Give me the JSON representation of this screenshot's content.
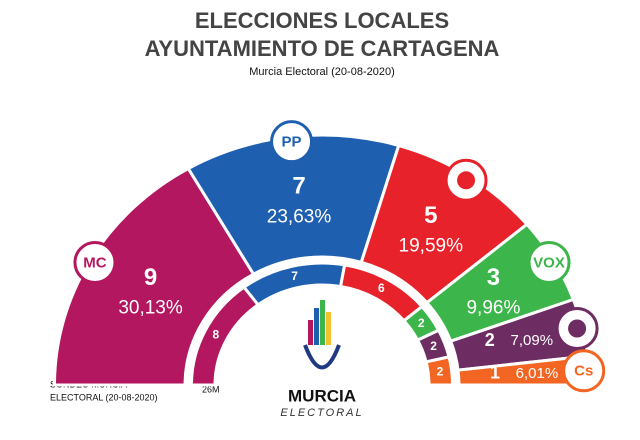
{
  "chart_data": {
    "type": "semicircle",
    "title": [
      "ELECCIONES LOCALES",
      "AYUNTAMIENTO DE CARTAGENA"
    ],
    "subtitle": "Murcia Electoral (20-08-2020)",
    "note": [
      "SONDEO MURCIA",
      "ELECTORAL (20-08-2020)"
    ],
    "inner_label": "26M",
    "brand": [
      "MURCIA",
      "ELECTORAL"
    ],
    "categories": [
      "MC",
      "PP",
      null,
      "VOX",
      null,
      "Cs"
    ],
    "colors": [
      "#b3175f",
      "#1f5fb0",
      "#e8222b",
      "#3cb64a",
      "#6e2d62",
      "#f26522"
    ],
    "seats": [
      9,
      7,
      5,
      3,
      2,
      1
    ],
    "percent": [
      30.13,
      23.63,
      19.59,
      9.96,
      7.09,
      6.01
    ],
    "percent_labels": [
      "30,13%",
      "23,63%",
      "19,59%",
      "9,96%",
      "7,09%",
      "6,01%"
    ],
    "seats_26m": [
      8,
      7,
      6,
      2,
      2,
      2
    ]
  }
}
